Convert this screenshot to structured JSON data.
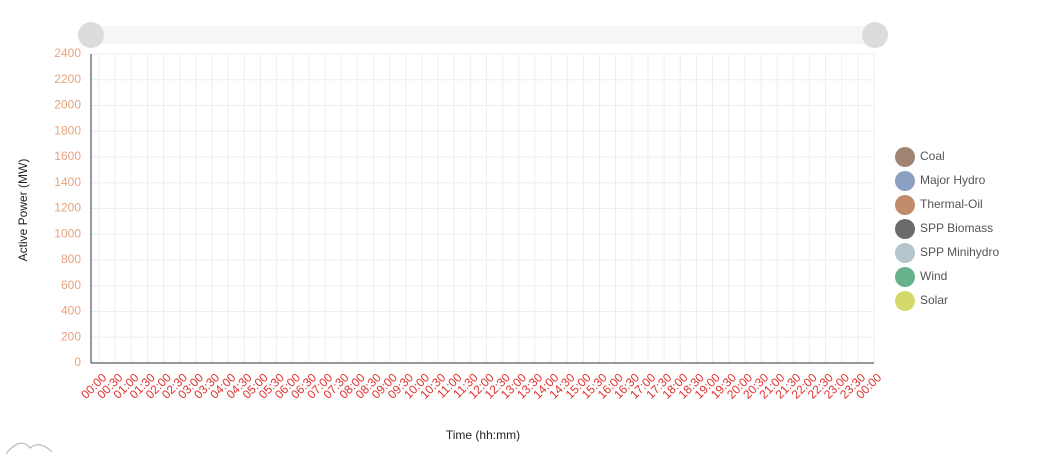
{
  "chart_data": {
    "type": "line",
    "y_label": "Active Power (MW)",
    "x_label": "Time (hh:mm)",
    "categories": [
      "00:00",
      "00:30",
      "01:00",
      "01:30",
      "02:00",
      "02:30",
      "03:00",
      "03:30",
      "04:00",
      "04:30",
      "05:00",
      "05:30",
      "06:00",
      "06:30",
      "07:00",
      "07:30",
      "08:00",
      "08:30",
      "09:00",
      "09:30",
      "10:00",
      "10:30",
      "11:00",
      "11:30",
      "12:00",
      "12:30",
      "13:00",
      "13:30",
      "14:00",
      "14:30",
      "15:00",
      "15:30",
      "16:00",
      "16:30",
      "17:00",
      "17:30",
      "18:00",
      "18:30",
      "19:00",
      "19:30",
      "20:00",
      "20:30",
      "21:00",
      "21:30",
      "22:00",
      "22:30",
      "23:00",
      "23:30",
      "00:00"
    ],
    "series": [
      {
        "name": "Coal",
        "color": "#a08472",
        "values": [
          null,
          null,
          null,
          null,
          null,
          null,
          null,
          null,
          null,
          null,
          null,
          null,
          null,
          null,
          null,
          null,
          null,
          null,
          null,
          null,
          null,
          null,
          null,
          null,
          null,
          null,
          null,
          null,
          null,
          null,
          null,
          null,
          null,
          null,
          null,
          null,
          null,
          null,
          null,
          null,
          null,
          null,
          null,
          null,
          null,
          null,
          null,
          null,
          null
        ]
      },
      {
        "name": "Major Hydro",
        "color": "#8a9fc2",
        "values": [
          null,
          null,
          null,
          null,
          null,
          null,
          null,
          null,
          null,
          null,
          null,
          null,
          null,
          null,
          null,
          null,
          null,
          null,
          null,
          null,
          null,
          null,
          null,
          null,
          null,
          null,
          null,
          null,
          null,
          null,
          null,
          null,
          null,
          null,
          null,
          null,
          null,
          null,
          null,
          null,
          null,
          null,
          null,
          null,
          null,
          null,
          null,
          null,
          null
        ]
      },
      {
        "name": "Thermal-Oil",
        "color": "#c28b6b",
        "values": [
          null,
          null,
          null,
          null,
          null,
          null,
          null,
          null,
          null,
          null,
          null,
          null,
          null,
          null,
          null,
          null,
          null,
          null,
          null,
          null,
          null,
          null,
          null,
          null,
          null,
          null,
          null,
          null,
          null,
          null,
          null,
          null,
          null,
          null,
          null,
          null,
          null,
          null,
          null,
          null,
          null,
          null,
          null,
          null,
          null,
          null,
          null,
          null,
          null
        ]
      },
      {
        "name": "SPP Biomass",
        "color": "#6b6b6b",
        "values": [
          null,
          null,
          null,
          null,
          null,
          null,
          null,
          null,
          null,
          null,
          null,
          null,
          null,
          null,
          null,
          null,
          null,
          null,
          null,
          null,
          null,
          null,
          null,
          null,
          null,
          null,
          null,
          null,
          null,
          null,
          null,
          null,
          null,
          null,
          null,
          null,
          null,
          null,
          null,
          null,
          null,
          null,
          null,
          null,
          null,
          null,
          null,
          null,
          null
        ]
      },
      {
        "name": "SPP Minihydro",
        "color": "#b5c5cc",
        "values": [
          null,
          null,
          null,
          null,
          null,
          null,
          null,
          null,
          null,
          null,
          null,
          null,
          null,
          null,
          null,
          null,
          null,
          null,
          null,
          null,
          null,
          null,
          null,
          null,
          null,
          null,
          null,
          null,
          null,
          null,
          null,
          null,
          null,
          null,
          null,
          null,
          null,
          null,
          null,
          null,
          null,
          null,
          null,
          null,
          null,
          null,
          null,
          null,
          null
        ]
      },
      {
        "name": "Wind",
        "color": "#67b28b",
        "values": [
          null,
          null,
          null,
          null,
          null,
          null,
          null,
          null,
          null,
          null,
          null,
          null,
          null,
          null,
          null,
          null,
          null,
          null,
          null,
          null,
          null,
          null,
          null,
          null,
          null,
          null,
          null,
          null,
          null,
          null,
          null,
          null,
          null,
          null,
          null,
          null,
          null,
          null,
          null,
          null,
          null,
          null,
          null,
          null,
          null,
          null,
          null,
          null,
          null
        ]
      },
      {
        "name": "Solar",
        "color": "#d5d96b",
        "values": [
          null,
          null,
          null,
          null,
          null,
          null,
          null,
          null,
          null,
          null,
          null,
          null,
          null,
          null,
          null,
          null,
          null,
          null,
          null,
          null,
          null,
          null,
          null,
          null,
          null,
          null,
          null,
          null,
          null,
          null,
          null,
          null,
          null,
          null,
          null,
          null,
          null,
          null,
          null,
          null,
          null,
          null,
          null,
          null,
          null,
          null,
          null,
          null,
          null
        ]
      }
    ],
    "ylim": [
      0,
      2400
    ],
    "yticks": [
      0,
      200,
      400,
      600,
      800,
      1000,
      1200,
      1400,
      1600,
      1800,
      2000,
      2200,
      2400
    ],
    "grid": true,
    "legend": "right"
  }
}
